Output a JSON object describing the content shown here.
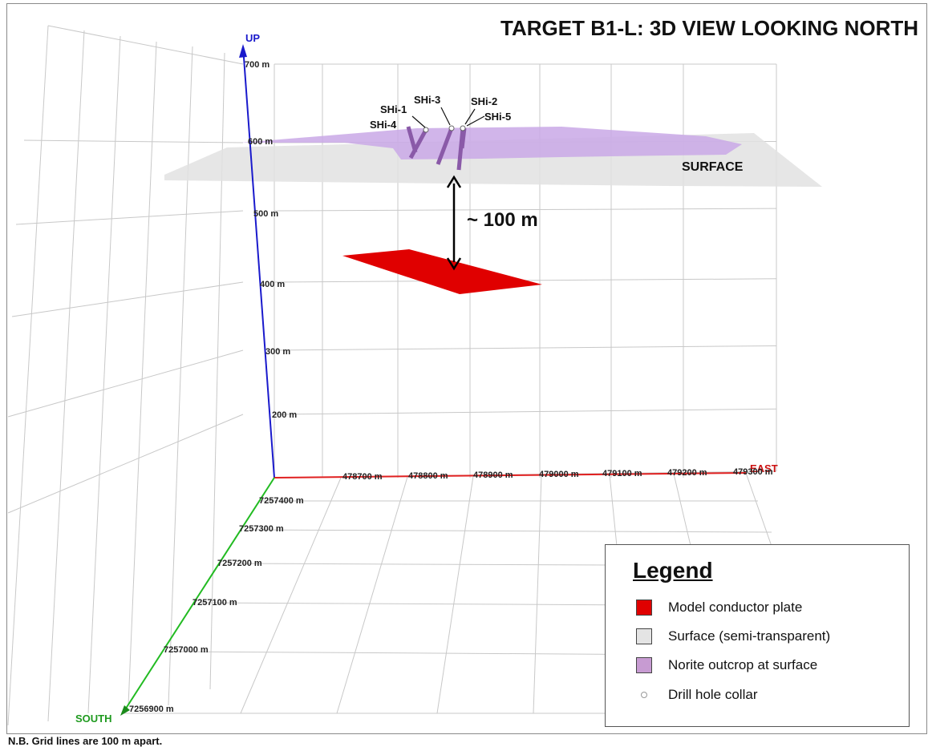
{
  "title": "TARGET B1-L: 3D VIEW LOOKING NORTH",
  "note": "N.B. Grid lines are 100 m apart.",
  "axes": {
    "up_label": "UP",
    "east_label": "EAST",
    "south_label": "SOUTH",
    "up_ticks": [
      "200 m",
      "300 m",
      "400 m",
      "500 m",
      "600 m",
      "700 m"
    ],
    "east_ticks": [
      "478700 m",
      "478800 m",
      "478900 m",
      "479000 m",
      "479100 m",
      "479200 m",
      "479300 m"
    ],
    "north_ticks": [
      "7256900 m",
      "7257000 m",
      "7257100 m",
      "7257200 m",
      "7257300 m",
      "7257400 m"
    ]
  },
  "annotations": {
    "surface_label": "SURFACE",
    "depth_label": "~ 100 m",
    "drill_holes": [
      "SHi-1",
      "SHi-2",
      "SHi-3",
      "SHi-4",
      "SHi-5"
    ]
  },
  "colors": {
    "up_axis": "#1a1acc",
    "east_axis": "#e02020",
    "south_axis": "#22bb22",
    "plate": "#e00000",
    "surface": "#e2e2e2",
    "norite": "#c9a8e6"
  },
  "legend": {
    "title": "Legend",
    "items": [
      {
        "label": "Model conductor plate",
        "color": "#e00000"
      },
      {
        "label": "Surface (semi-transparent)",
        "color": "#e4e4e4"
      },
      {
        "label": "Norite outcrop at surface",
        "color": "#c79bd2"
      },
      {
        "label": "Drill hole collar",
        "color": "#ffffff"
      }
    ]
  }
}
